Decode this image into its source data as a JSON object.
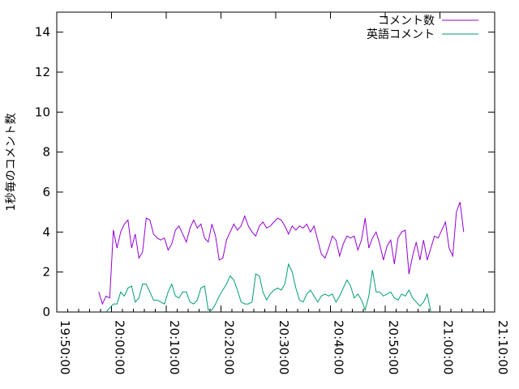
{
  "chart_data": {
    "type": "line",
    "ylabel": "1秒毎のコメント数",
    "xlabel": "",
    "ylim": [
      0,
      15
    ],
    "y_ticks": [
      0,
      2,
      4,
      6,
      8,
      10,
      12,
      14
    ],
    "xlim": [
      "19:50:00",
      "21:10:00"
    ],
    "x_ticks": [
      "19:50:00",
      "20:00:00",
      "20:10:00",
      "20:20:00",
      "20:30:00",
      "20:40:00",
      "20:50:00",
      "21:00:00",
      "21:10:00"
    ],
    "grid": false,
    "legend_position": "top-right",
    "x": [
      "19:57:40",
      "19:58:20",
      "19:59:00",
      "19:59:40",
      "20:00:20",
      "20:01:00",
      "20:01:40",
      "20:02:20",
      "20:03:00",
      "20:03:40",
      "20:04:20",
      "20:05:00",
      "20:05:40",
      "20:06:20",
      "20:07:00",
      "20:07:40",
      "20:08:20",
      "20:09:00",
      "20:09:40",
      "20:10:20",
      "20:11:00",
      "20:11:40",
      "20:12:20",
      "20:13:00",
      "20:13:40",
      "20:14:20",
      "20:15:00",
      "20:15:40",
      "20:16:20",
      "20:17:00",
      "20:17:40",
      "20:18:20",
      "20:19:00",
      "20:19:40",
      "20:20:20",
      "20:21:00",
      "20:21:40",
      "20:22:20",
      "20:23:00",
      "20:23:40",
      "20:24:20",
      "20:25:00",
      "20:25:40",
      "20:26:20",
      "20:27:00",
      "20:27:40",
      "20:28:20",
      "20:29:00",
      "20:29:40",
      "20:30:20",
      "20:31:00",
      "20:31:40",
      "20:32:20",
      "20:33:00",
      "20:33:40",
      "20:34:20",
      "20:35:00",
      "20:35:40",
      "20:36:20",
      "20:37:00",
      "20:37:40",
      "20:38:20",
      "20:39:00",
      "20:39:40",
      "20:40:20",
      "20:41:00",
      "20:41:40",
      "20:42:20",
      "20:43:00",
      "20:43:40",
      "20:44:20",
      "20:45:00",
      "20:45:40",
      "20:46:20",
      "20:47:00",
      "20:47:40",
      "20:48:20",
      "20:49:00",
      "20:49:40",
      "20:50:20",
      "20:51:00",
      "20:51:40",
      "20:52:20",
      "20:53:00",
      "20:53:40",
      "20:54:20",
      "20:55:00",
      "20:55:40",
      "20:56:20",
      "20:57:00",
      "20:57:40",
      "20:58:20",
      "20:59:00",
      "20:59:40",
      "21:00:20",
      "21:01:00",
      "21:01:40",
      "21:02:20",
      "21:03:00",
      "21:03:40",
      "21:04:20"
    ],
    "series": [
      {
        "name": "コメント数",
        "color": "#9400d3",
        "values": [
          1.0,
          0.4,
          0.8,
          0.7,
          4.1,
          3.2,
          4.0,
          4.4,
          4.6,
          3.2,
          3.9,
          2.7,
          3.0,
          4.7,
          4.6,
          3.9,
          3.7,
          3.6,
          3.7,
          3.1,
          3.4,
          4.1,
          4.3,
          3.9,
          3.5,
          4.2,
          4.6,
          4.2,
          4.4,
          3.7,
          3.5,
          4.4,
          3.8,
          2.6,
          2.7,
          3.6,
          4.0,
          4.4,
          4.1,
          4.3,
          4.8,
          4.3,
          4.0,
          3.8,
          4.3,
          4.5,
          4.2,
          4.3,
          4.5,
          4.7,
          4.6,
          4.3,
          3.9,
          4.3,
          4.1,
          4.3,
          4.2,
          4.4,
          4.0,
          4.3,
          3.6,
          2.9,
          2.7,
          3.2,
          3.8,
          3.6,
          2.8,
          3.4,
          3.8,
          3.7,
          3.8,
          3.1,
          3.6,
          4.7,
          3.2,
          3.7,
          4.0,
          3.4,
          2.6,
          3.3,
          3.6,
          2.4,
          3.7,
          4.0,
          4.1,
          1.9,
          2.8,
          3.5,
          2.6,
          3.6,
          2.6,
          3.2,
          3.8,
          3.7,
          4.1,
          4.5,
          3.2,
          2.8,
          5.0,
          5.5,
          4.0
        ]
      },
      {
        "name": "英語コメント",
        "color": "#009e73",
        "values": [
          null,
          null,
          0.0,
          0.2,
          0.4,
          0.4,
          1.0,
          0.8,
          1.2,
          1.3,
          0.5,
          0.7,
          1.4,
          1.4,
          1.0,
          0.6,
          0.6,
          0.5,
          0.4,
          1.0,
          1.4,
          0.8,
          0.7,
          1.0,
          1.0,
          0.5,
          0.4,
          0.6,
          1.2,
          1.3,
          0.1,
          0.1,
          0.4,
          0.8,
          1.1,
          1.4,
          1.8,
          1.6,
          1.1,
          0.5,
          0.4,
          0.4,
          0.5,
          1.9,
          1.8,
          1.0,
          0.6,
          0.9,
          1.1,
          1.2,
          1.1,
          1.4,
          2.4,
          2.0,
          1.2,
          0.6,
          0.5,
          0.9,
          1.1,
          0.8,
          0.5,
          0.8,
          0.9,
          0.8,
          0.9,
          0.5,
          0.8,
          1.2,
          1.6,
          1.3,
          0.7,
          0.9,
          0.6,
          0.1,
          0.8,
          2.1,
          1.0,
          1.0,
          0.8,
          0.9,
          1.0,
          0.7,
          0.6,
          0.9,
          0.8,
          1.1,
          0.7,
          0.5,
          0.3,
          0.5,
          0.9,
          0.0,
          null,
          null,
          null,
          null,
          null,
          null,
          null,
          null,
          null
        ]
      }
    ]
  }
}
